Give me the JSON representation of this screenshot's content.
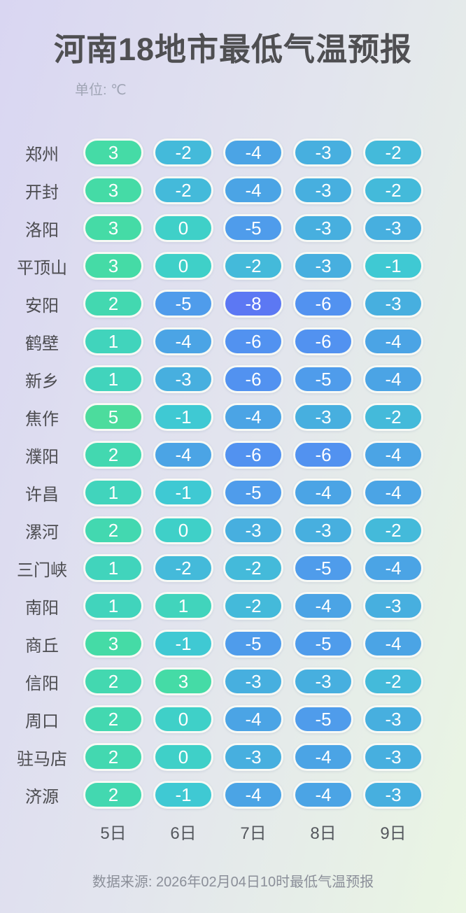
{
  "title": "河南18地市最低气温预报",
  "unit_label": "单位: ℃",
  "footer": "数据来源: 2026年02月04日10时最低气温预报",
  "colors": {
    "bg_left": "#d9d6f2",
    "bg_right": "#eaf6e3",
    "title_text": "#4f4f52",
    "unit_text": "#a0a5b5",
    "label_text": "#4c4c50",
    "axis_text": "#55585e",
    "footer_text": "#8b8f99",
    "pill_text": "#ffffff",
    "pill_border": "#f7f9f5"
  },
  "temp_color_scale": {
    "5": "#4cdc9d",
    "3": "#45dba6",
    "2": "#43d8b0",
    "1": "#41d4bc",
    "0": "#3fd0c8",
    "-1": "#3fc9d3",
    "-2": "#44bada",
    "-3": "#47afdf",
    "-4": "#4ba4e5",
    "-5": "#4f9ceb",
    "-6": "#5292f0",
    "-8": "#5c78f3"
  },
  "chart_data": {
    "type": "heatmap",
    "title": "河南18地市最低气温预报",
    "unit": "℃",
    "columns": [
      "5日",
      "6日",
      "7日",
      "8日",
      "9日"
    ],
    "value_range": [
      -8,
      5
    ],
    "rows": [
      {
        "city": "郑州",
        "values": [
          3,
          -2,
          -4,
          -3,
          -2
        ]
      },
      {
        "city": "开封",
        "values": [
          3,
          -2,
          -4,
          -3,
          -2
        ]
      },
      {
        "city": "洛阳",
        "values": [
          3,
          0,
          -5,
          -3,
          -3
        ]
      },
      {
        "city": "平顶山",
        "values": [
          3,
          0,
          -2,
          -3,
          -1
        ]
      },
      {
        "city": "安阳",
        "values": [
          2,
          -5,
          -8,
          -6,
          -3
        ]
      },
      {
        "city": "鹤壁",
        "values": [
          1,
          -4,
          -6,
          -6,
          -4
        ]
      },
      {
        "city": "新乡",
        "values": [
          1,
          -3,
          -6,
          -5,
          -4
        ]
      },
      {
        "city": "焦作",
        "values": [
          5,
          -1,
          -4,
          -3,
          -2
        ]
      },
      {
        "city": "濮阳",
        "values": [
          2,
          -4,
          -6,
          -6,
          -4
        ]
      },
      {
        "city": "许昌",
        "values": [
          1,
          -1,
          -5,
          -4,
          -4
        ]
      },
      {
        "city": "漯河",
        "values": [
          2,
          0,
          -3,
          -3,
          -2
        ]
      },
      {
        "city": "三门峡",
        "values": [
          1,
          -2,
          -2,
          -5,
          -4
        ]
      },
      {
        "city": "南阳",
        "values": [
          1,
          1,
          -2,
          -4,
          -3
        ]
      },
      {
        "city": "商丘",
        "values": [
          3,
          -1,
          -5,
          -5,
          -4
        ]
      },
      {
        "city": "信阳",
        "values": [
          2,
          3,
          -3,
          -3,
          -2
        ]
      },
      {
        "city": "周口",
        "values": [
          2,
          0,
          -4,
          -5,
          -3
        ]
      },
      {
        "city": "驻马店",
        "values": [
          2,
          0,
          -3,
          -4,
          -3
        ]
      },
      {
        "city": "济源",
        "values": [
          2,
          -1,
          -4,
          -4,
          -3
        ]
      }
    ]
  }
}
